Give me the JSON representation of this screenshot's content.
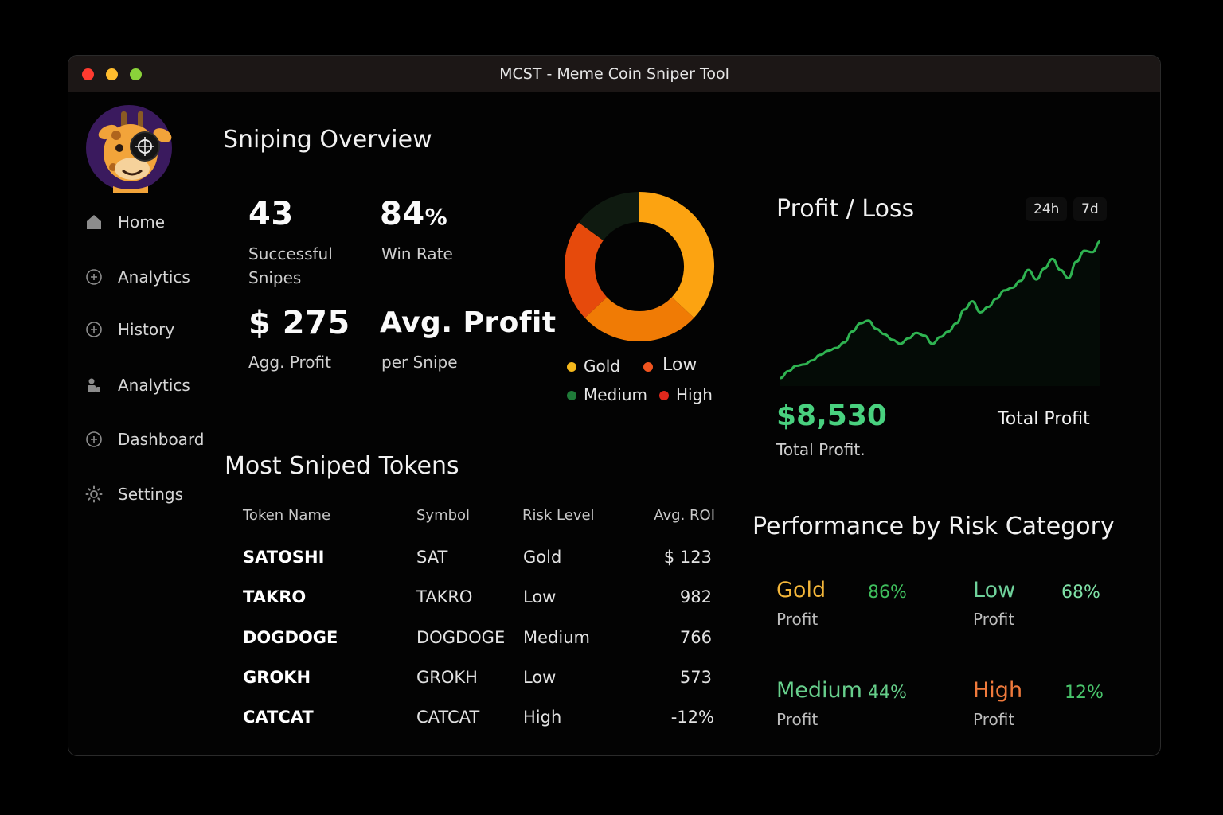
{
  "window": {
    "title": "MCST - Meme Coin Sniper Tool"
  },
  "sidebar": {
    "items": [
      {
        "label": "Home",
        "icon": "home-icon"
      },
      {
        "label": "Analytics",
        "icon": "plus-circle-icon"
      },
      {
        "label": "History",
        "icon": "plus-circle-icon"
      },
      {
        "label": "Analytics",
        "icon": "user-group-icon"
      },
      {
        "label": "Dashboard",
        "icon": "plus-circle-icon"
      },
      {
        "label": "Settings",
        "icon": "gear-icon"
      }
    ]
  },
  "overview": {
    "title": "Sniping Overview",
    "stats": {
      "snipes_value": "43",
      "snipes_label_1": "Successful",
      "snipes_label_2": "Snipes",
      "winrate_value": "84",
      "winrate_unit": "%",
      "winrate_label": "Win Rate",
      "profit_value": "$ 275",
      "profit_label": "Agg. Profit",
      "avg_title": "Avg. Profit",
      "avg_label": "per Snipe"
    }
  },
  "donut": {
    "segments": [
      {
        "name": "Gold",
        "value": 37,
        "color": "#fca311"
      },
      {
        "name": "Low",
        "value": 26,
        "color": "#f07b05"
      },
      {
        "name": "High",
        "value": 22,
        "color": "#e64a0c"
      },
      {
        "name": "Medium",
        "value": 15,
        "color": "#0f1a10"
      }
    ],
    "legend": [
      {
        "label": "Gold",
        "color": "#f5b81c"
      },
      {
        "label": "Low",
        "color": "#f0541f"
      },
      {
        "label": "Medium",
        "color": "#1f7a38"
      },
      {
        "label": "High",
        "color": "#e2281c"
      }
    ]
  },
  "pnl": {
    "title": "Profit / Loss",
    "ranges": [
      "24h",
      "7d"
    ],
    "total_value": "$8,530",
    "total_caption": "Total Profit.",
    "total_label": "Total Profit",
    "line_color": "#2fb351",
    "series": [
      0.0,
      0.05,
      0.09,
      0.1,
      0.13,
      0.17,
      0.2,
      0.22,
      0.26,
      0.34,
      0.4,
      0.42,
      0.36,
      0.32,
      0.28,
      0.25,
      0.29,
      0.33,
      0.31,
      0.25,
      0.3,
      0.34,
      0.4,
      0.5,
      0.56,
      0.48,
      0.52,
      0.58,
      0.64,
      0.66,
      0.71,
      0.79,
      0.72,
      0.8,
      0.87,
      0.79,
      0.73,
      0.85,
      0.93,
      0.92,
      1.0
    ]
  },
  "tokens": {
    "title": "Most Sniped Tokens",
    "headers": [
      "Token Name",
      "Symbol",
      "Risk Level",
      "Avg. ROI"
    ],
    "rows": [
      {
        "name": "SATOSHI",
        "symbol": "SAT",
        "risk": "Gold",
        "roi": "$ 123"
      },
      {
        "name": "TAKRO",
        "symbol": "TAKRO",
        "risk": "Low",
        "roi": "982"
      },
      {
        "name": "DOGDOGE",
        "symbol": "DOGDOGE",
        "risk": "Medium",
        "roi": "766"
      },
      {
        "name": "GROKH",
        "symbol": "GROKH",
        "risk": "Low",
        "roi": "573"
      },
      {
        "name": "CATCAT",
        "symbol": "CATCAT",
        "risk": "High",
        "roi": "-12%"
      }
    ]
  },
  "performance": {
    "title": "Performance by Risk Category",
    "categories": [
      {
        "name": "Gold",
        "pct": "86%",
        "sub": "Profit",
        "name_color": "#f3b63a",
        "pct_color": "#3fbf5d"
      },
      {
        "name": "Low",
        "pct": "68%",
        "sub": "Profit",
        "name_color": "#6fd29b",
        "pct_color": "#7fe0a6"
      },
      {
        "name": "Medium",
        "pct": "44%",
        "sub": "Profit",
        "name_color": "#67cf8c",
        "pct_color": "#66cf8a"
      },
      {
        "name": "High",
        "pct": "12%",
        "sub": "Profit",
        "name_color": "#f07a3c",
        "pct_color": "#49c46b"
      }
    ]
  },
  "colors": {
    "accent_green": "#49d17f",
    "background": "#030303",
    "titlebar": "#1c1716"
  }
}
